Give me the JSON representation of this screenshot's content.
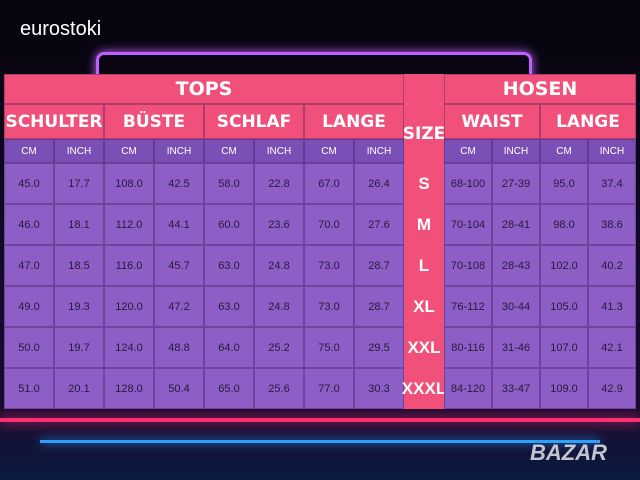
{
  "brand": "eurostoki",
  "watermark": "BAZAR",
  "table": {
    "groups": [
      "TOPS",
      "SIZE",
      "HOSEN"
    ],
    "columns": [
      "SCHULTER",
      "BÜSTE",
      "SCHLAF",
      "LANGE",
      "WAIST",
      "LANGE"
    ],
    "units": [
      "CM",
      "INCH",
      "CM",
      "INCH",
      "CM",
      "INCH",
      "CM",
      "INCH",
      "CM",
      "INCH",
      "CM",
      "INCH"
    ],
    "rows": [
      [
        "45.0",
        "17.7",
        "108.0",
        "42.5",
        "58.0",
        "22.8",
        "67.0",
        "26.4",
        "S",
        "68-100",
        "27-39",
        "95.0",
        "37.4"
      ],
      [
        "46.0",
        "18.1",
        "112.0",
        "44.1",
        "60.0",
        "23.6",
        "70.0",
        "27.6",
        "M",
        "70-104",
        "28-41",
        "98.0",
        "38.6"
      ],
      [
        "47.0",
        "18.5",
        "116.0",
        "45.7",
        "63.0",
        "24.8",
        "73.0",
        "28.7",
        "L",
        "70-108",
        "28-43",
        "102.0",
        "40.2"
      ],
      [
        "49.0",
        "19.3",
        "120.0",
        "47.2",
        "63.0",
        "24.8",
        "73.0",
        "28.7",
        "XL",
        "76-112",
        "30-44",
        "105.0",
        "41.3"
      ],
      [
        "50.0",
        "19.7",
        "124.0",
        "48.8",
        "64.0",
        "25.2",
        "75.0",
        "29.5",
        "XXL",
        "80-116",
        "31-46",
        "107.0",
        "42.1"
      ],
      [
        "51.0",
        "20.1",
        "128.0",
        "50.4",
        "65.0",
        "25.6",
        "77.0",
        "30.3",
        "XXXL",
        "84-120",
        "33-47",
        "109.0",
        "42.9"
      ]
    ]
  }
}
